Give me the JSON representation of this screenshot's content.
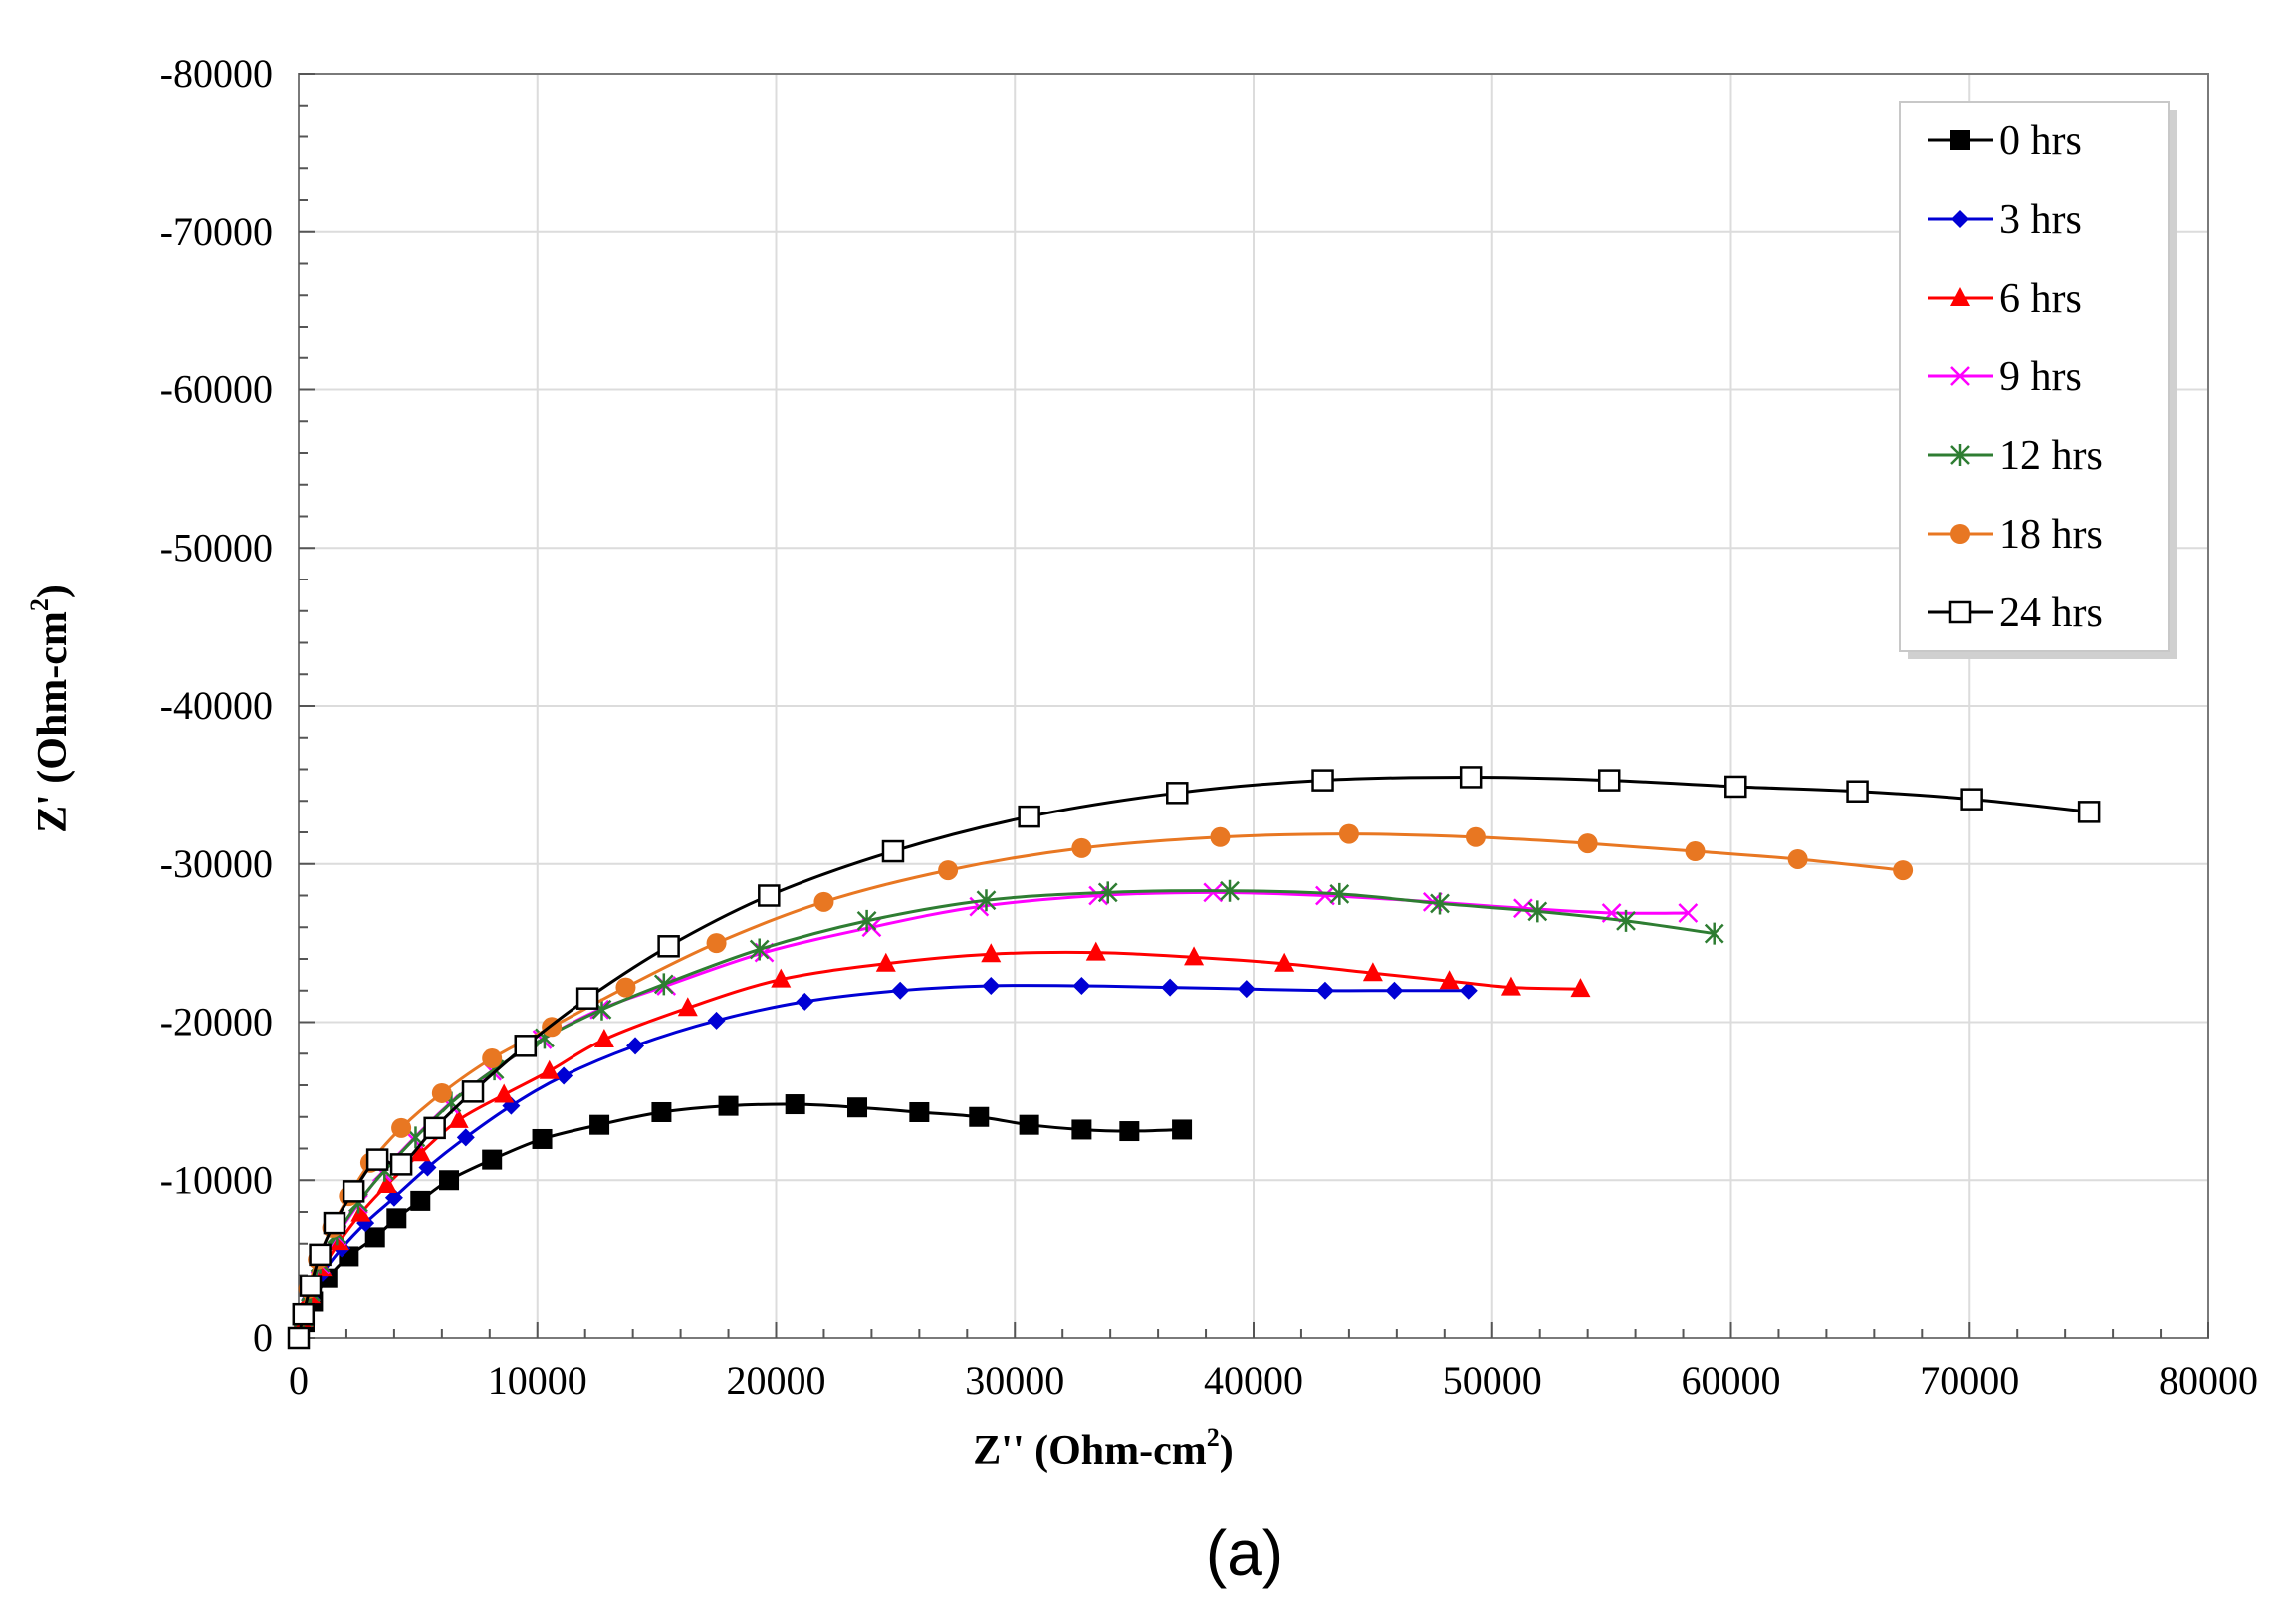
{
  "chart_data": {
    "type": "scatter",
    "caption": "(a)",
    "xlabel": {
      "main": "Z'' (Ohm-cm",
      "sup": "2",
      "tail": ")"
    },
    "ylabel": {
      "main": "Z' (Ohm-cm",
      "sup": "2",
      "tail": ")"
    },
    "xlim": [
      0,
      80000
    ],
    "ylim": [
      0,
      -80000
    ],
    "x_ticks": [
      0,
      10000,
      20000,
      30000,
      40000,
      50000,
      60000,
      70000,
      80000
    ],
    "y_ticks": [
      0,
      -10000,
      -20000,
      -30000,
      -40000,
      -50000,
      -60000,
      -70000,
      -80000
    ],
    "x_tick_labels": [
      "0",
      "10000",
      "20000",
      "30000",
      "40000",
      "50000",
      "60000",
      "70000",
      "80000"
    ],
    "y_tick_labels": [
      "0",
      "-10000",
      "-20000",
      "-30000",
      "-40000",
      "-50000",
      "-60000",
      "-70000",
      "-80000"
    ],
    "grid": true,
    "legend_position": "top-right",
    "series": [
      {
        "name": "0 hrs",
        "color": "#000000",
        "marker": "square-filled",
        "x": [
          0,
          250,
          600,
          1200,
          2100,
          3200,
          4100,
          5100,
          6300,
          8100,
          10200,
          12600,
          15200,
          18000,
          20800,
          23400,
          26000,
          28500,
          30600,
          32800,
          34800,
          37000
        ],
        "y": [
          0,
          -1000,
          -2300,
          -3800,
          -5200,
          -6400,
          -7600,
          -8700,
          -10000,
          -11300,
          -12600,
          -13500,
          -14300,
          -14700,
          -14800,
          -14600,
          -14300,
          -14000,
          -13500,
          -13200,
          -13100,
          -13200
        ]
      },
      {
        "name": "3 hrs",
        "color": "#0000d4",
        "marker": "diamond",
        "x": [
          0,
          200,
          500,
          1000,
          1800,
          2800,
          4000,
          5400,
          7000,
          8900,
          11100,
          14100,
          17500,
          21200,
          25200,
          29000,
          32800,
          36500,
          39700,
          43000,
          45900,
          49000
        ],
        "y": [
          0,
          -1100,
          -2500,
          -4100,
          -5700,
          -7300,
          -8900,
          -10800,
          -12700,
          -14700,
          -16600,
          -18500,
          -20100,
          -21300,
          -22000,
          -22300,
          -22300,
          -22200,
          -22100,
          -22000,
          -22000,
          -22000
        ]
      },
      {
        "name": "6 hrs",
        "color": "#ff0000",
        "marker": "triangle",
        "x": [
          0,
          200,
          500,
          1000,
          1700,
          2600,
          3700,
          5100,
          6700,
          8600,
          10500,
          12800,
          16300,
          20200,
          24600,
          29000,
          33400,
          37500,
          41300,
          45000,
          48200,
          50800,
          53700
        ],
        "y": [
          0,
          -1200,
          -2700,
          -4400,
          -6100,
          -7900,
          -9700,
          -11700,
          -13800,
          -15400,
          -16900,
          -18900,
          -20900,
          -22700,
          -23700,
          -24300,
          -24400,
          -24100,
          -23700,
          -23100,
          -22600,
          -22200,
          -22100
        ]
      },
      {
        "name": "9 hrs",
        "color": "#ff00ff",
        "marker": "x",
        "x": [
          0,
          200,
          500,
          900,
          1600,
          2500,
          3500,
          4800,
          6300,
          8100,
          10200,
          12600,
          15400,
          19500,
          24000,
          28500,
          33500,
          38300,
          43000,
          47500,
          51300,
          55000,
          58200
        ],
        "y": [
          0,
          -1300,
          -2900,
          -4700,
          -6500,
          -8500,
          -10500,
          -12600,
          -14800,
          -16900,
          -18900,
          -20800,
          -22300,
          -24400,
          -26000,
          -27300,
          -28000,
          -28200,
          -28000,
          -27600,
          -27200,
          -26900,
          -26900
        ]
      },
      {
        "name": "12 hrs",
        "color": "#2e7d32",
        "marker": "star",
        "x": [
          0,
          200,
          500,
          900,
          1600,
          2500,
          3600,
          4900,
          6400,
          8200,
          10300,
          12700,
          15300,
          19300,
          23800,
          28800,
          33900,
          39000,
          43600,
          47800,
          51900,
          55600,
          59300
        ],
        "y": [
          0,
          -1300,
          -2900,
          -4800,
          -6600,
          -8600,
          -10600,
          -12700,
          -14900,
          -17000,
          -19000,
          -20800,
          -22400,
          -24600,
          -26400,
          -27700,
          -28200,
          -28300,
          -28100,
          -27500,
          -27000,
          -26400,
          -25600
        ]
      },
      {
        "name": "18 hrs",
        "color": "#e87722",
        "marker": "circle-filled",
        "x": [
          0,
          200,
          400,
          800,
          1400,
          2100,
          3000,
          4300,
          6000,
          8100,
          10600,
          13700,
          17500,
          22000,
          27200,
          32800,
          38600,
          44000,
          49300,
          54000,
          58500,
          62800,
          67200
        ],
        "y": [
          0,
          -1400,
          -3100,
          -5000,
          -7000,
          -9000,
          -11100,
          -13300,
          -15500,
          -17700,
          -19700,
          -22200,
          -25000,
          -27600,
          -29600,
          -31000,
          -31700,
          -31900,
          -31700,
          -31300,
          -30800,
          -30300,
          -29600
        ]
      },
      {
        "name": "24 hrs",
        "color": "#000000",
        "marker": "square-open",
        "x": [
          0,
          200,
          500,
          900,
          1500,
          2300,
          3300,
          4300,
          5700,
          7300,
          9500,
          12100,
          15500,
          19700,
          24900,
          30600,
          36800,
          42900,
          49100,
          54900,
          60200,
          65300,
          70100,
          75000
        ],
        "y": [
          0,
          -1500,
          -3300,
          -5300,
          -7300,
          -9300,
          -11300,
          -11000,
          -13300,
          -15600,
          -18500,
          -21500,
          -24800,
          -28000,
          -30800,
          -33000,
          -34500,
          -35300,
          -35500,
          -35300,
          -34900,
          -34600,
          -34100,
          -33300
        ]
      }
    ]
  }
}
